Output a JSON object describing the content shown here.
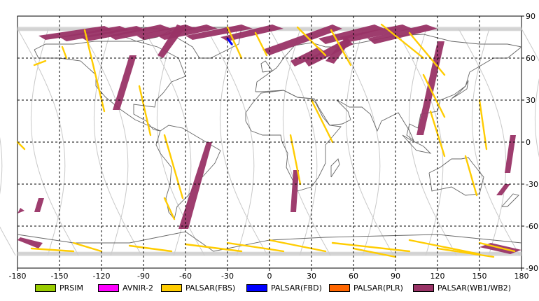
{
  "map": {
    "x_axis": {
      "range": [
        -180,
        180
      ],
      "ticks": [
        -180,
        -150,
        -120,
        -90,
        -60,
        -30,
        0,
        30,
        60,
        90,
        120,
        150,
        180
      ]
    },
    "y_axis": {
      "range": [
        -90,
        90
      ],
      "ticks": [
        90,
        60,
        30,
        0,
        -30,
        -60,
        -90
      ]
    },
    "grid": true
  },
  "legend": {
    "items": [
      {
        "label": "PRSIM",
        "color": "#99cc00"
      },
      {
        "label": "AVNIR-2",
        "color": "#ff00ff"
      },
      {
        "label": "PALSAR(FBS)",
        "color": "#ffcc00"
      },
      {
        "label": "PALSAR(FBD)",
        "color": "#0000ff"
      },
      {
        "label": "PALSAR(PLR)",
        "color": "#ff6600"
      },
      {
        "label": "PALSAR(WB1/WB2)",
        "color": "#993366"
      }
    ]
  },
  "swaths": {
    "wb": [
      [
        [
          -118,
          83
        ],
        [
          -165,
          76
        ],
        [
          -160,
          73
        ],
        [
          -112,
          80
        ]
      ],
      [
        [
          -107,
          83
        ],
        [
          -150,
          75
        ],
        [
          -145,
          72
        ],
        [
          -100,
          80
        ]
      ],
      [
        [
          -95,
          83
        ],
        [
          -135,
          75
        ],
        [
          -130,
          72
        ],
        [
          -88,
          80
        ]
      ],
      [
        [
          -78,
          84
        ],
        [
          -115,
          76
        ],
        [
          -110,
          73
        ],
        [
          -70,
          81
        ]
      ],
      [
        [
          -60,
          84
        ],
        [
          -95,
          76
        ],
        [
          -90,
          73
        ],
        [
          -52,
          81
        ]
      ],
      [
        [
          -45,
          84
        ],
        [
          -80,
          76
        ],
        [
          -75,
          73
        ],
        [
          -37,
          81
        ]
      ],
      [
        [
          -20,
          84
        ],
        [
          -60,
          76
        ],
        [
          -55,
          73
        ],
        [
          -12,
          81
        ]
      ],
      [
        [
          2,
          84
        ],
        [
          -35,
          75
        ],
        [
          -30,
          72
        ],
        [
          10,
          81
        ]
      ],
      [
        [
          -100,
          62
        ],
        [
          -112,
          23
        ],
        [
          -107,
          23
        ],
        [
          -95,
          62
        ]
      ],
      [
        [
          45,
          84
        ],
        [
          -5,
          66
        ],
        [
          0,
          62
        ],
        [
          52,
          81
        ]
      ],
      [
        [
          75,
          84
        ],
        [
          35,
          74
        ],
        [
          40,
          70
        ],
        [
          82,
          81
        ]
      ],
      [
        [
          95,
          84
        ],
        [
          50,
          75
        ],
        [
          55,
          71
        ],
        [
          102,
          81
        ]
      ],
      [
        [
          112,
          84
        ],
        [
          70,
          74
        ],
        [
          75,
          70
        ],
        [
          120,
          81
        ]
      ],
      [
        [
          55,
          74
        ],
        [
          25,
          58
        ],
        [
          28,
          54
        ],
        [
          60,
          70
        ]
      ],
      [
        [
          35,
          68
        ],
        [
          15,
          58
        ],
        [
          18,
          54
        ],
        [
          40,
          64
        ]
      ],
      [
        [
          -66,
          84
        ],
        [
          -80,
          62
        ],
        [
          -76,
          60
        ],
        [
          -60,
          82
        ]
      ],
      [
        [
          55,
          75
        ],
        [
          40,
          58
        ],
        [
          46,
          56
        ],
        [
          58,
          72
        ]
      ],
      [
        [
          -45,
          0
        ],
        [
          -65,
          -62
        ],
        [
          -58,
          -62
        ],
        [
          -41,
          0
        ]
      ],
      [
        [
          120,
          72
        ],
        [
          105,
          5
        ],
        [
          110,
          5
        ],
        [
          125,
          72
        ]
      ],
      [
        [
          17,
          -20
        ],
        [
          15,
          -50
        ],
        [
          19,
          -50
        ],
        [
          21,
          -20
        ]
      ],
      [
        [
          172,
          5
        ],
        [
          168,
          -22
        ],
        [
          172,
          -22
        ],
        [
          176,
          5
        ]
      ],
      [
        [
          -165,
          -40
        ],
        [
          -168,
          -50
        ],
        [
          -164,
          -50
        ],
        [
          -161,
          -40
        ]
      ],
      [
        [
          168,
          -30
        ],
        [
          162,
          -38
        ],
        [
          166,
          -38
        ],
        [
          172,
          -30
        ]
      ],
      [
        [
          -180,
          -70
        ],
        [
          -165,
          -76
        ],
        [
          -162,
          -72
        ],
        [
          -178,
          -68
        ]
      ],
      [
        [
          150,
          -75
        ],
        [
          172,
          -80
        ],
        [
          180,
          -77
        ],
        [
          158,
          -72
        ]
      ],
      [
        [
          -175,
          -49
        ],
        [
          -180,
          -51
        ],
        [
          -178,
          -47
        ]
      ]
    ],
    "fbs": [
      [
        [
          -132,
          80
        ],
        [
          -118,
          22
        ]
      ],
      [
        [
          -160,
          58
        ],
        [
          -168,
          55
        ]
      ],
      [
        [
          -148,
          68
        ],
        [
          -145,
          60
        ]
      ],
      [
        [
          -93,
          40
        ],
        [
          -85,
          5
        ]
      ],
      [
        [
          -75,
          5
        ],
        [
          -62,
          -40
        ]
      ],
      [
        [
          -75,
          -40
        ],
        [
          -68,
          -55
        ]
      ],
      [
        [
          -30,
          82
        ],
        [
          -20,
          60
        ]
      ],
      [
        [
          -10,
          78
        ],
        [
          -2,
          62
        ]
      ],
      [
        [
          20,
          82
        ],
        [
          40,
          62
        ]
      ],
      [
        [
          44,
          80
        ],
        [
          58,
          55
        ]
      ],
      [
        [
          30,
          30
        ],
        [
          45,
          0
        ]
      ],
      [
        [
          15,
          5
        ],
        [
          22,
          -30
        ]
      ],
      [
        [
          80,
          84
        ],
        [
          110,
          60
        ]
      ],
      [
        [
          100,
          78
        ],
        [
          125,
          48
        ]
      ],
      [
        [
          110,
          48
        ],
        [
          125,
          18
        ]
      ],
      [
        [
          115,
          22
        ],
        [
          125,
          -10
        ]
      ],
      [
        [
          140,
          -10
        ],
        [
          148,
          -38
        ]
      ],
      [
        [
          150,
          30
        ],
        [
          155,
          -5
        ]
      ],
      [
        [
          0,
          -70
        ],
        [
          40,
          -78
        ]
      ],
      [
        [
          45,
          -72
        ],
        [
          100,
          -78
        ]
      ],
      [
        [
          100,
          -70
        ],
        [
          150,
          -80
        ]
      ],
      [
        [
          -140,
          -72
        ],
        [
          -120,
          -78
        ]
      ],
      [
        [
          -100,
          -74
        ],
        [
          -70,
          -78
        ]
      ],
      [
        [
          -60,
          -73
        ],
        [
          -20,
          -78
        ]
      ],
      [
        [
          150,
          -72
        ],
        [
          175,
          -78
        ]
      ],
      [
        [
          120,
          -76
        ],
        [
          160,
          -82
        ]
      ],
      [
        [
          -170,
          -76
        ],
        [
          -140,
          -78
        ]
      ],
      [
        [
          -30,
          -72
        ],
        [
          10,
          -78
        ]
      ],
      [
        [
          60,
          -76
        ],
        [
          90,
          -82
        ]
      ],
      [
        [
          -180,
          0
        ],
        [
          -175,
          -5
        ]
      ]
    ],
    "fbd": [
      [
        [
          -30,
          74
        ],
        [
          -27,
          70
        ]
      ]
    ]
  }
}
